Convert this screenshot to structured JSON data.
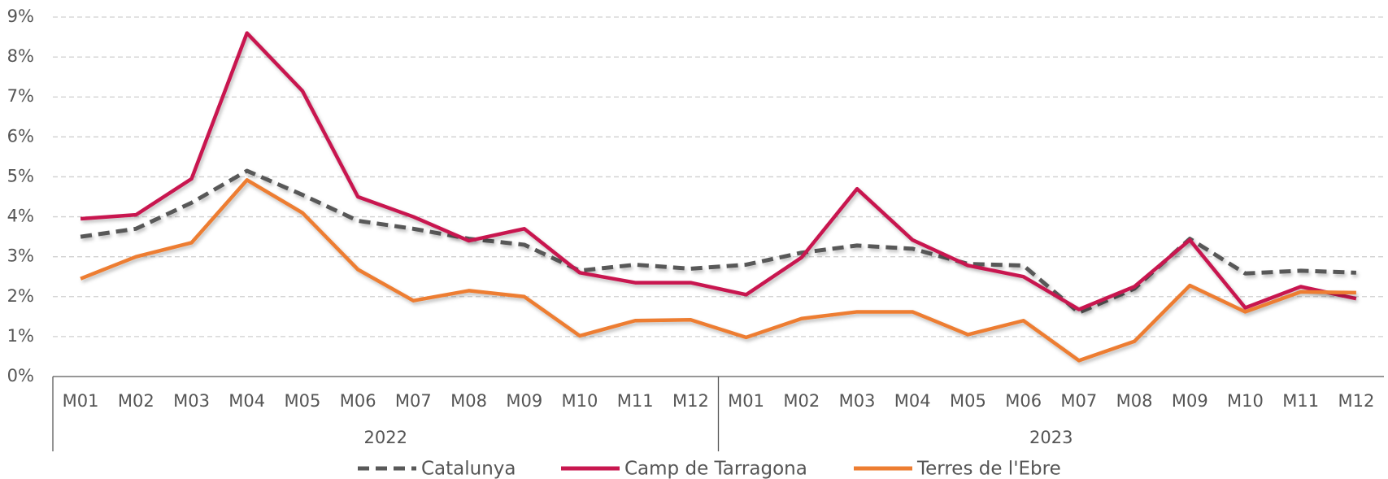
{
  "chart_data": {
    "type": "line",
    "categories": [
      "M01",
      "M02",
      "M03",
      "M04",
      "M05",
      "M06",
      "M07",
      "M08",
      "M09",
      "M10",
      "M11",
      "M12",
      "M01",
      "M02",
      "M03",
      "M04",
      "M05",
      "M06",
      "M07",
      "M08",
      "M09",
      "M10",
      "M11",
      "M12"
    ],
    "groups": [
      {
        "label": "2022",
        "start": 0,
        "end": 11
      },
      {
        "label": "2023",
        "start": 12,
        "end": 23
      }
    ],
    "series": [
      {
        "name": "Catalunya",
        "color": "#595959",
        "dashed": true,
        "values": [
          3.5,
          3.7,
          4.35,
          5.15,
          4.55,
          3.9,
          3.7,
          3.45,
          3.3,
          2.65,
          2.8,
          2.7,
          2.8,
          3.1,
          3.28,
          3.2,
          2.82,
          2.78,
          1.6,
          2.2,
          3.45,
          2.58,
          2.65,
          2.6
        ]
      },
      {
        "name": "Camp de Tarragona",
        "color": "#c8174f",
        "dashed": false,
        "values": [
          3.95,
          4.05,
          4.95,
          8.6,
          7.15,
          4.5,
          4.0,
          3.4,
          3.7,
          2.6,
          2.35,
          2.35,
          2.05,
          2.98,
          4.7,
          3.42,
          2.78,
          2.5,
          1.68,
          2.25,
          3.42,
          1.72,
          2.25,
          1.95
        ]
      },
      {
        "name": "Terres de l'Ebre",
        "color": "#ed7d31",
        "dashed": false,
        "values": [
          2.45,
          3.0,
          3.35,
          4.92,
          4.1,
          2.68,
          1.9,
          2.15,
          2.0,
          1.02,
          1.4,
          1.42,
          0.98,
          1.45,
          1.62,
          1.62,
          1.05,
          1.4,
          0.4,
          0.88,
          2.28,
          1.62,
          2.12,
          2.1
        ]
      }
    ],
    "ylim": [
      0,
      9
    ],
    "yticks": [
      {
        "value": 0,
        "label": "0%"
      },
      {
        "value": 1,
        "label": "1%"
      },
      {
        "value": 2,
        "label": "2%"
      },
      {
        "value": 3,
        "label": "3%"
      },
      {
        "value": 4,
        "label": "4%"
      },
      {
        "value": 5,
        "label": "5%"
      },
      {
        "value": 6,
        "label": "6%"
      },
      {
        "value": 7,
        "label": "7%"
      },
      {
        "value": 8,
        "label": "8%"
      },
      {
        "value": 9,
        "label": "9%"
      }
    ],
    "grid": true,
    "legend": "bottom"
  }
}
